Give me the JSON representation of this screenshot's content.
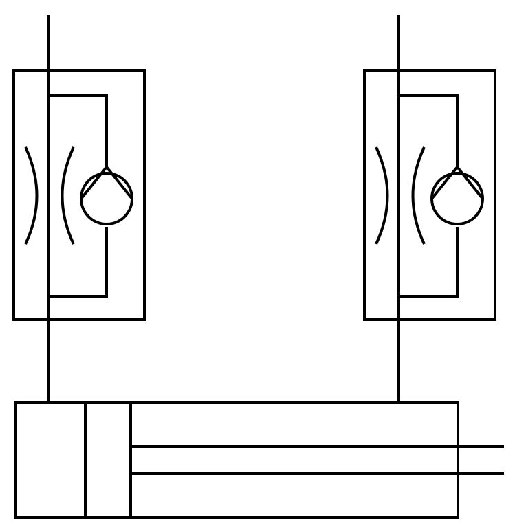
{
  "diagram": {
    "kind": "hydraulic-schematic",
    "colors": {
      "stroke": "#000000",
      "background": "#ffffff"
    },
    "components": [
      {
        "id": "flow-control-valve-left",
        "symbol": "throttle-with-check-valve"
      },
      {
        "id": "flow-control-valve-right",
        "symbol": "throttle-with-check-valve"
      },
      {
        "id": "hydraulic-cylinder",
        "symbol": "double-acting-cylinder-with-rod"
      }
    ],
    "connections": [
      {
        "from": "flow-control-valve-left",
        "to": "hydraulic-cylinder"
      },
      {
        "from": "flow-control-valve-right",
        "to": "hydraulic-cylinder"
      }
    ]
  }
}
